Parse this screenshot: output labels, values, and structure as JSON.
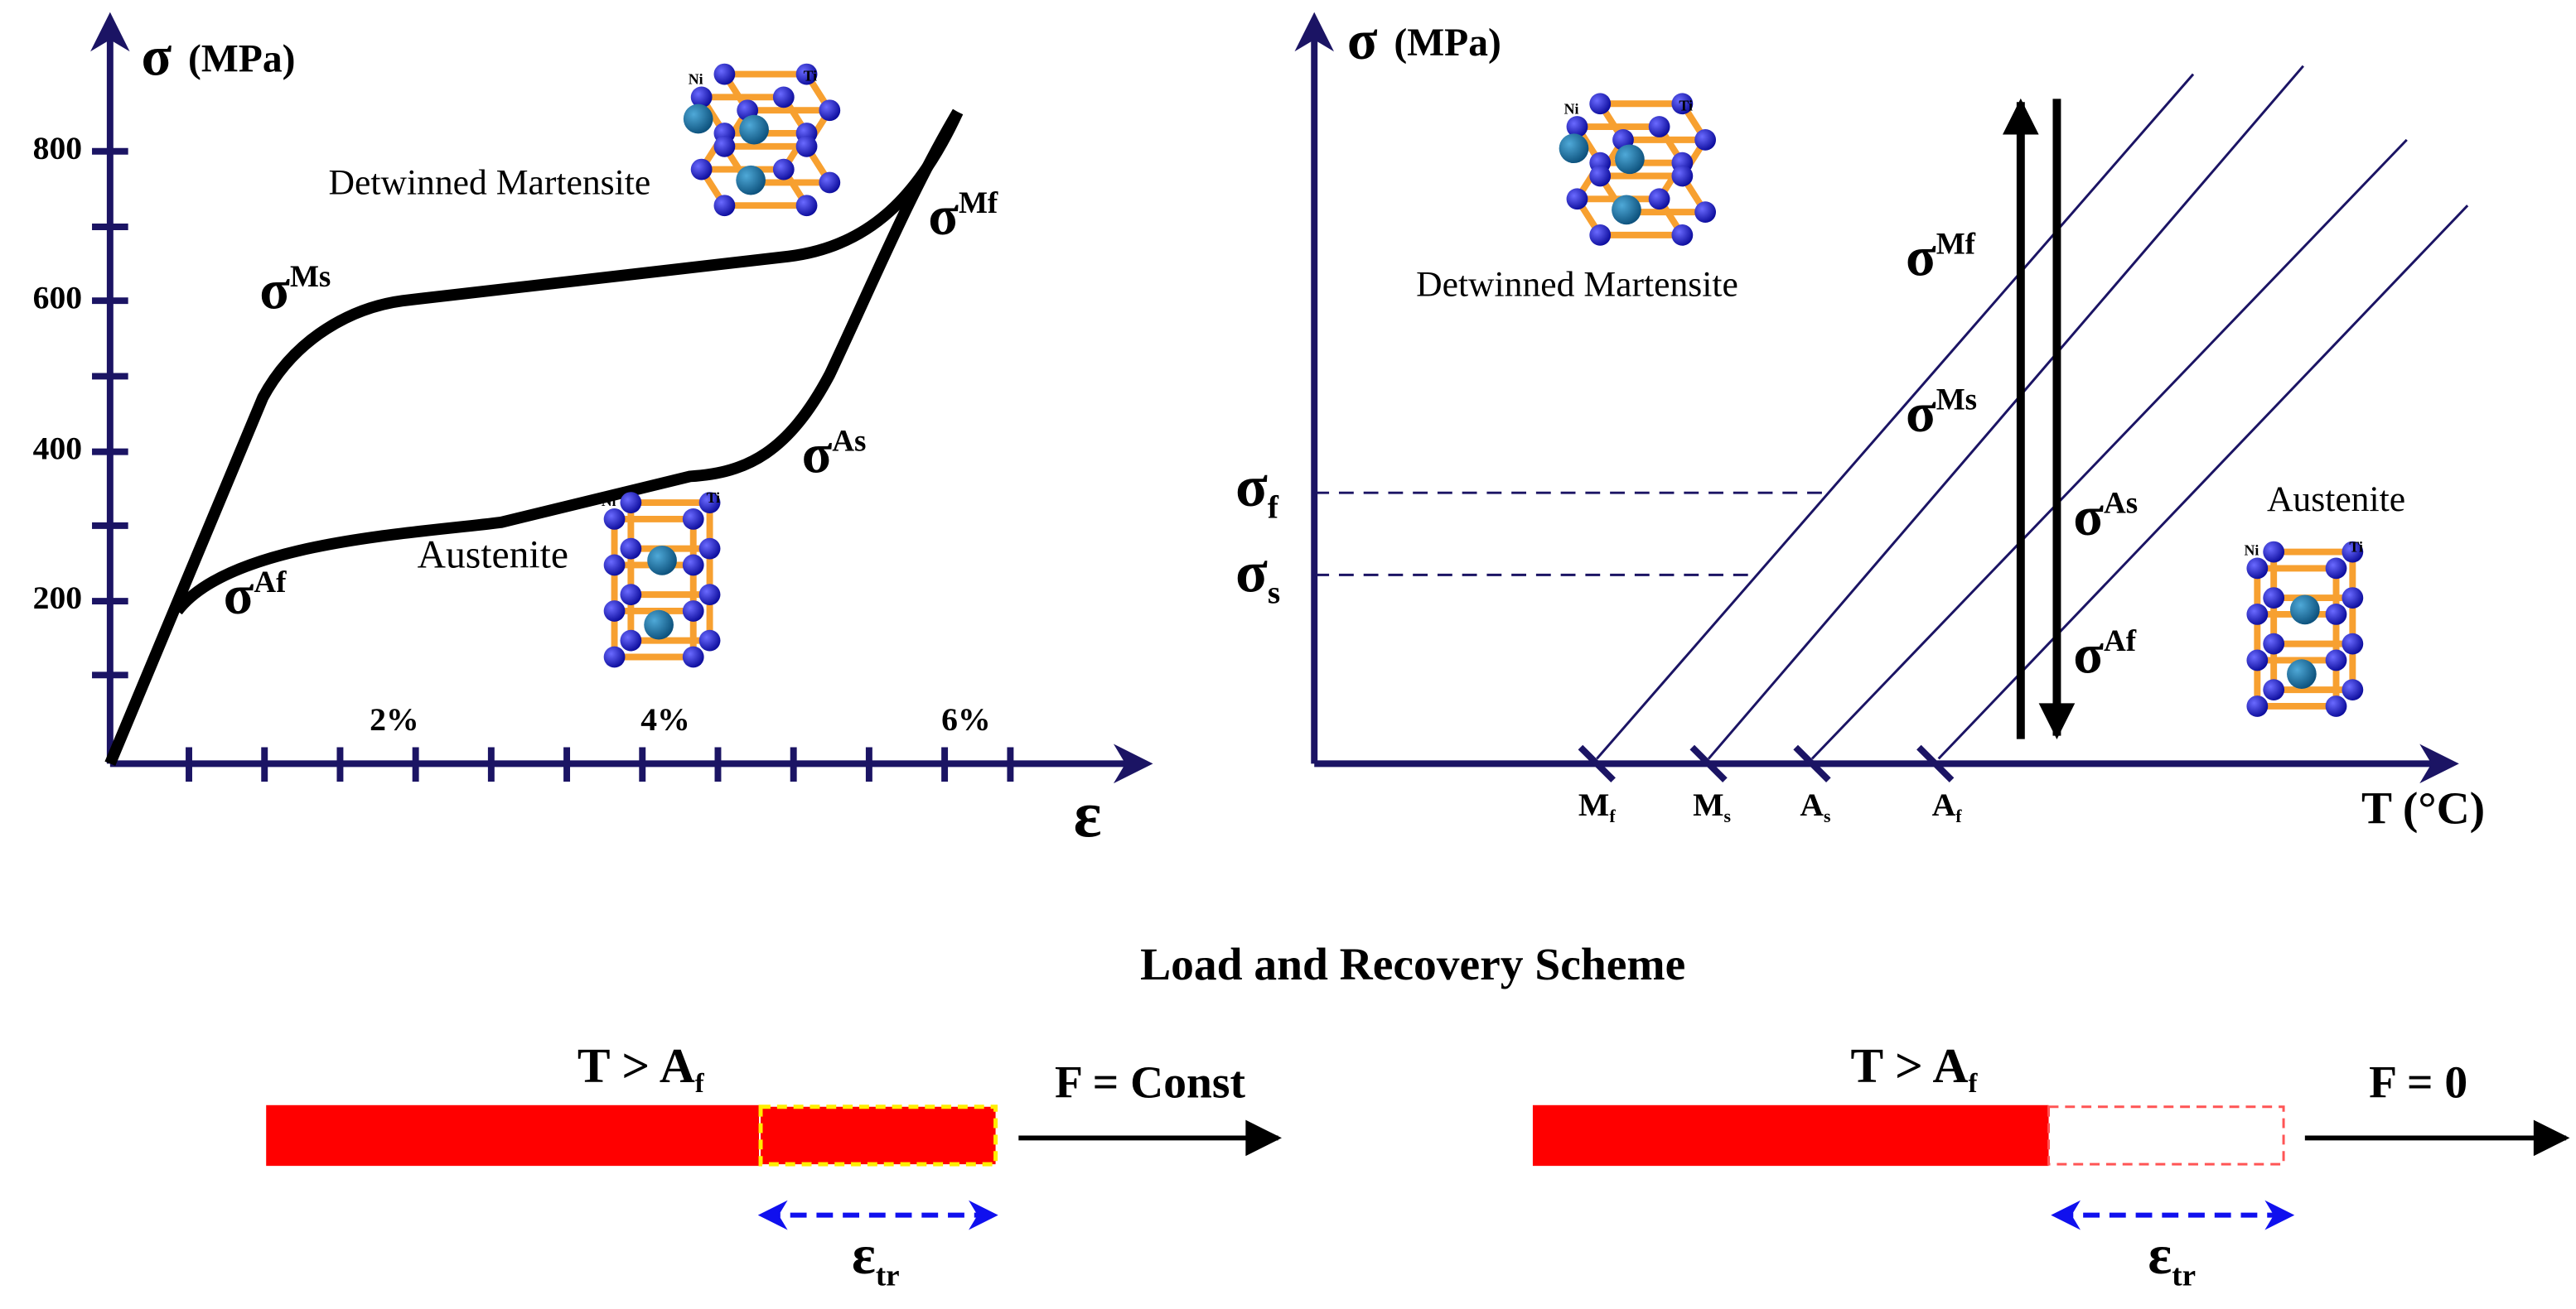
{
  "left_plot": {
    "y_axis_symbol": "σ",
    "y_axis_unit": "(MPa)",
    "y_tick_labels": [
      "800",
      "600",
      "400",
      "200"
    ],
    "x_tick_labels": [
      "2%",
      "4%",
      "6%"
    ],
    "x_axis_symbol": "ε",
    "phase_labels": [
      "Detwinned Martensite",
      "Austenite"
    ],
    "stress_labels": [
      {
        "symbol": "σ",
        "sup": "Ms"
      },
      {
        "symbol": "σ",
        "sup": "Mf"
      },
      {
        "symbol": "σ",
        "sup": "As"
      },
      {
        "symbol": "σ",
        "sup": "Af"
      }
    ],
    "atom_labels": [
      "Ni",
      "Ti"
    ]
  },
  "right_plot": {
    "y_axis_symbol": "σ",
    "y_axis_unit": "(MPa)",
    "x_axis_label": "T (°C)",
    "phase_labels": [
      "Detwinned Martensite",
      "Austenite"
    ],
    "stress_levels": [
      {
        "symbol": "σ",
        "sub": "f"
      },
      {
        "symbol": "σ",
        "sub": "s"
      }
    ],
    "temperatures": [
      {
        "symbol": "M",
        "sub": "f"
      },
      {
        "symbol": "M",
        "sub": "s"
      },
      {
        "symbol": "A",
        "sub": "s"
      },
      {
        "symbol": "A",
        "sub": "f"
      }
    ],
    "stress_labels": [
      {
        "symbol": "σ",
        "sup": "Mf"
      },
      {
        "symbol": "σ",
        "sup": "Ms"
      },
      {
        "symbol": "σ",
        "sup": "As"
      },
      {
        "symbol": "σ",
        "sup": "Af"
      }
    ],
    "atom_labels": [
      "Ni",
      "Ti"
    ]
  },
  "scheme": {
    "title": "Load and Recovery Scheme",
    "panels": [
      {
        "condition": {
          "text": "T > A",
          "sub": "f"
        },
        "force": "F = Const",
        "strain": {
          "symbol": "ε",
          "sub": "tr"
        }
      },
      {
        "condition": {
          "text": "T > A",
          "sub": "f"
        },
        "force": "F = 0",
        "strain": {
          "symbol": "ε",
          "sub": "tr"
        }
      }
    ]
  }
}
